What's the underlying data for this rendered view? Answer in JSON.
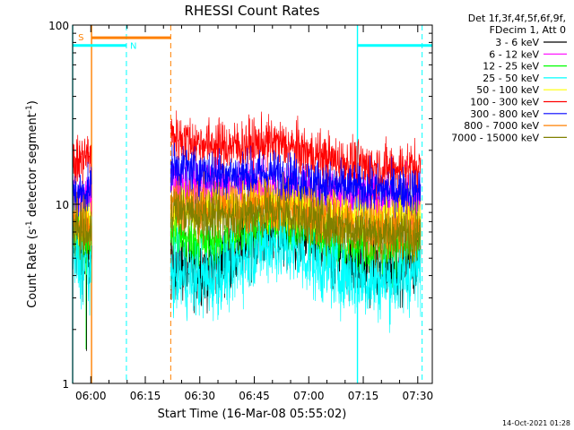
{
  "chart_data": {
    "type": "line",
    "title": "RHESSI Count Rates",
    "xlabel": "Start Time (16-Mar-08 05:55:02)",
    "ylabel_prefix": "Count Rate (s",
    "ylabel_exp": "-1",
    "ylabel_suffix": " detector segment",
    "ylabel_close": ")",
    "x_ticks": [
      "06:00",
      "06:15",
      "06:30",
      "06:45",
      "07:00",
      "07:15",
      "07:30"
    ],
    "x_tick_minutes": [
      5,
      20,
      35,
      50,
      65,
      80,
      95
    ],
    "xlim_minutes": [
      0,
      99
    ],
    "y_scale": "log",
    "ylim": [
      1,
      100
    ],
    "y_ticks": [
      "1",
      "10",
      "100"
    ],
    "y_tick_values": [
      1,
      10,
      100
    ],
    "legend": {
      "header": [
        "Det 1f,3f,4f,5f,6f,9f,",
        "FDecim 1, Att 0"
      ],
      "placement": "right"
    },
    "data_gaps_minutes": [
      [
        5.2,
        27
      ]
    ],
    "series": [
      {
        "name": "3 - 6 keV",
        "color": "#000000",
        "noise": 0.42,
        "points": [
          [
            0,
            6.2
          ],
          [
            2,
            5.4
          ],
          [
            4.5,
            4.9
          ],
          [
            27,
            4.8
          ],
          [
            32,
            4.4
          ],
          [
            38,
            4.5
          ],
          [
            44,
            5.2
          ],
          [
            50,
            6.6
          ],
          [
            56,
            7.0
          ],
          [
            62,
            6.5
          ],
          [
            68,
            5.6
          ],
          [
            75,
            5.0
          ],
          [
            82,
            4.5
          ],
          [
            88,
            4.6
          ],
          [
            95,
            4.9
          ]
        ]
      },
      {
        "name": "6 - 12 keV",
        "color": "#ff00ff",
        "noise": 0.32,
        "points": [
          [
            0,
            11.5
          ],
          [
            2.5,
            11.0
          ],
          [
            4.5,
            11.0
          ],
          [
            27,
            13.2
          ],
          [
            35,
            12.6
          ],
          [
            45,
            12.5
          ],
          [
            55,
            12.0
          ],
          [
            65,
            11.3
          ],
          [
            75,
            10.8
          ],
          [
            85,
            10.5
          ],
          [
            95,
            10.6
          ]
        ]
      },
      {
        "name": "12 - 25 keV",
        "color": "#00ff00",
        "noise": 0.32,
        "points": [
          [
            0,
            7.2
          ],
          [
            2,
            6.4
          ],
          [
            4.5,
            6.0
          ],
          [
            27,
            7.0
          ],
          [
            32,
            6.2
          ],
          [
            38,
            6.0
          ],
          [
            44,
            6.5
          ],
          [
            50,
            7.6
          ],
          [
            56,
            7.8
          ],
          [
            62,
            7.2
          ],
          [
            68,
            6.4
          ],
          [
            75,
            5.9
          ],
          [
            82,
            5.6
          ],
          [
            88,
            5.8
          ],
          [
            95,
            6.1
          ]
        ]
      },
      {
        "name": "25 - 50 keV",
        "color": "#00ffff",
        "noise": 0.45,
        "points": [
          [
            0,
            5.2
          ],
          [
            2,
            4.6
          ],
          [
            4.5,
            4.2
          ],
          [
            27,
            4.1
          ],
          [
            32,
            3.8
          ],
          [
            38,
            3.8
          ],
          [
            44,
            4.5
          ],
          [
            50,
            5.6
          ],
          [
            56,
            6.0
          ],
          [
            62,
            5.4
          ],
          [
            68,
            4.6
          ],
          [
            75,
            4.1
          ],
          [
            82,
            3.7
          ],
          [
            88,
            3.8
          ],
          [
            95,
            4.2
          ]
        ]
      },
      {
        "name": "50 - 100 keV",
        "color": "#ffff00",
        "noise": 0.3,
        "points": [
          [
            0,
            9.2
          ],
          [
            2,
            8.6
          ],
          [
            4.5,
            8.0
          ],
          [
            27,
            9.8
          ],
          [
            34,
            9.3
          ],
          [
            42,
            9.4
          ],
          [
            50,
            10.0
          ],
          [
            56,
            10.3
          ],
          [
            62,
            9.6
          ],
          [
            68,
            9.0
          ],
          [
            75,
            8.6
          ],
          [
            82,
            8.4
          ],
          [
            88,
            8.5
          ],
          [
            95,
            8.6
          ]
        ]
      },
      {
        "name": "100 - 300 keV",
        "color": "#ff0000",
        "noise": 0.3,
        "points": [
          [
            0,
            16.5
          ],
          [
            2.5,
            17.8
          ],
          [
            4.5,
            19.0
          ],
          [
            27,
            24.0
          ],
          [
            34,
            22.0
          ],
          [
            42,
            21.0
          ],
          [
            50,
            21.5
          ],
          [
            56,
            22.0
          ],
          [
            62,
            20.0
          ],
          [
            70,
            18.0
          ],
          [
            78,
            16.5
          ],
          [
            86,
            15.8
          ],
          [
            95,
            16.2
          ]
        ]
      },
      {
        "name": "300 - 800 keV",
        "color": "#0000ff",
        "noise": 0.28,
        "points": [
          [
            0,
            11.0
          ],
          [
            2.5,
            11.5
          ],
          [
            4.5,
            12.0
          ],
          [
            27,
            16.5
          ],
          [
            34,
            15.3
          ],
          [
            42,
            14.8
          ],
          [
            50,
            14.6
          ],
          [
            56,
            14.8
          ],
          [
            62,
            13.8
          ],
          [
            70,
            12.8
          ],
          [
            78,
            12.2
          ],
          [
            86,
            12.0
          ],
          [
            95,
            11.8
          ]
        ]
      },
      {
        "name": "800 - 7000 keV",
        "color": "#ff8000",
        "noise": 0.32,
        "points": [
          [
            0,
            8.2
          ],
          [
            2.5,
            7.5
          ],
          [
            4.5,
            7.0
          ],
          [
            27,
            10.5
          ],
          [
            34,
            9.5
          ],
          [
            42,
            9.3
          ],
          [
            50,
            9.6
          ],
          [
            56,
            9.8
          ],
          [
            62,
            9.0
          ],
          [
            70,
            8.2
          ],
          [
            78,
            7.5
          ],
          [
            86,
            7.0
          ],
          [
            95,
            7.1
          ]
        ]
      },
      {
        "name": "7000 - 15000 keV",
        "color": "#808000",
        "noise": 0.3,
        "points": [
          [
            0,
            7.6
          ],
          [
            2.5,
            7.0
          ],
          [
            4.5,
            6.6
          ],
          [
            27,
            9.4
          ],
          [
            34,
            8.7
          ],
          [
            42,
            8.6
          ],
          [
            50,
            9.0
          ],
          [
            56,
            9.2
          ],
          [
            62,
            8.5
          ],
          [
            70,
            7.8
          ],
          [
            78,
            7.2
          ],
          [
            86,
            6.8
          ],
          [
            95,
            6.9
          ]
        ]
      }
    ],
    "spikes": [
      {
        "minute": 3.7,
        "value": 1.55,
        "color": "#00ff00"
      }
    ],
    "markers": {
      "cyan_solid_minutes": [
        0,
        78.4
      ],
      "cyan_dashed_minutes": [
        14.8,
        96.2
      ],
      "orange_solid_minutes": [
        5.2
      ],
      "orange_dashed_minutes": [
        27
      ],
      "orange_bar": {
        "label": "S",
        "start_minute": 5.2,
        "end_minute": 27,
        "value": 85,
        "color": "#ff8000"
      },
      "cyan_bars": [
        {
          "label": "N",
          "start_minute": 0,
          "end_minute": 14.8,
          "value": 77,
          "color": "#00ffff"
        },
        {
          "label": "",
          "start_minute": 78.4,
          "end_minute": 99,
          "value": 77,
          "color": "#00ffff"
        }
      ]
    }
  },
  "footer": {
    "timestamp": "14-Oct-2021 01:28"
  }
}
